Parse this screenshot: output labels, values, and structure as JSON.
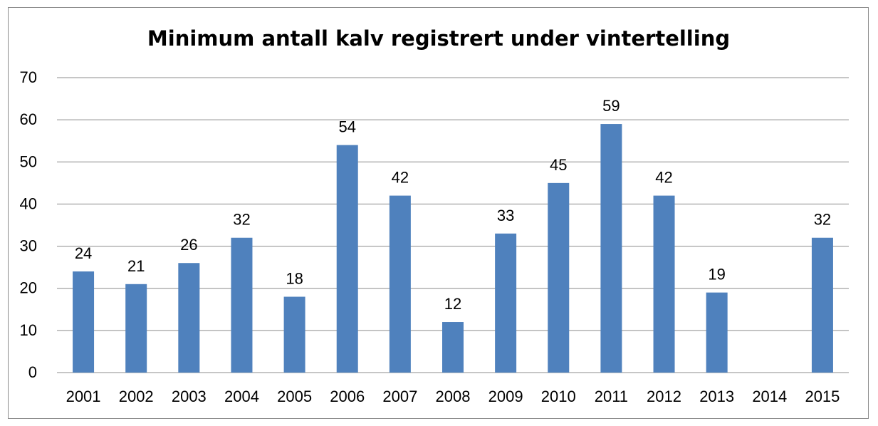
{
  "chart_data": {
    "type": "bar",
    "title": "Minimum antall kalv registrert under vintertelling",
    "xlabel": "",
    "ylabel": "",
    "categories": [
      "2001",
      "2002",
      "2003",
      "2004",
      "2005",
      "2006",
      "2007",
      "2008",
      "2009",
      "2010",
      "2011",
      "2012",
      "2013",
      "2014",
      "2015"
    ],
    "values": [
      24,
      21,
      26,
      32,
      18,
      54,
      42,
      12,
      33,
      45,
      59,
      42,
      19,
      null,
      32
    ],
    "ylim": [
      0,
      70
    ],
    "yticks": [
      0,
      10,
      20,
      30,
      40,
      50,
      60,
      70
    ],
    "grid": true,
    "legend": "none",
    "bar_color": "#4f81bd",
    "data_labels": true
  }
}
